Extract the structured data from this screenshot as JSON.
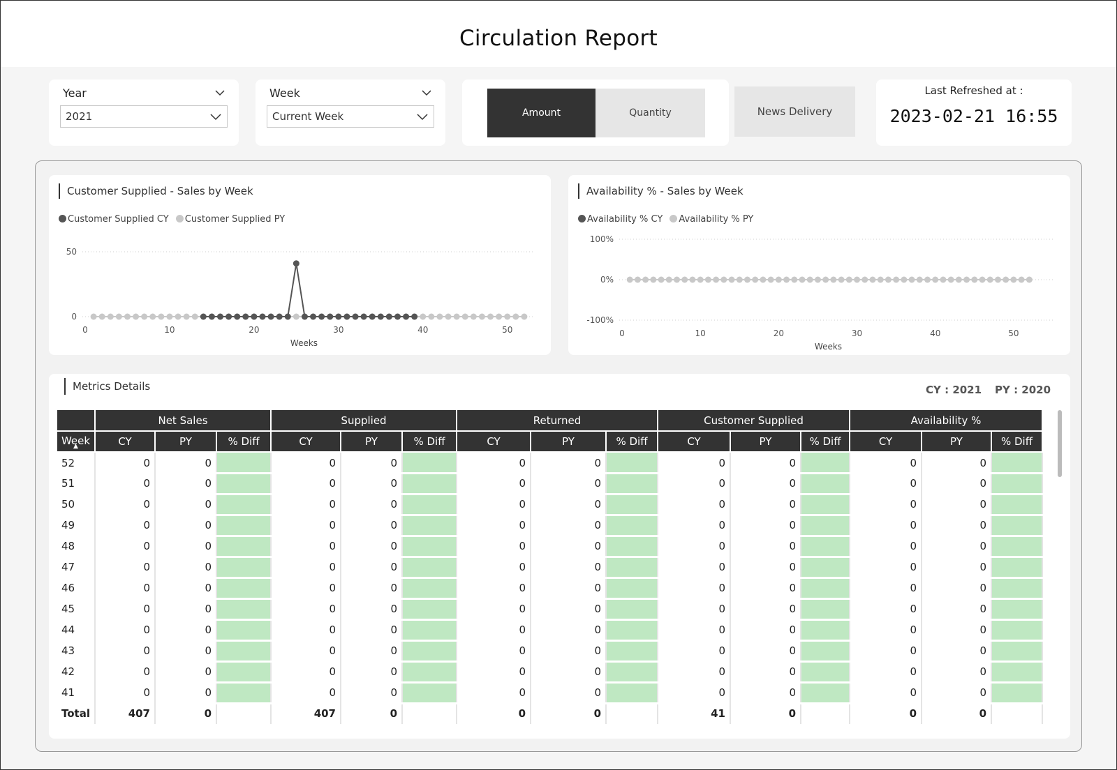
{
  "title": "Circulation Report",
  "filters": {
    "year": {
      "label": "Year",
      "value": "2021"
    },
    "week": {
      "label": "Week",
      "value": "Current Week"
    }
  },
  "toggle": {
    "amount": "Amount",
    "quantity": "Quantity",
    "active": "Amount"
  },
  "news_delivery": "News Delivery",
  "refresh": {
    "label": "Last Refreshed at :",
    "time": "2023-02-21 16:55"
  },
  "chart1": {
    "title": "Customer Supplied - Sales by Week",
    "legend": [
      "Customer Supplied CY",
      "Customer Supplied PY"
    ]
  },
  "chart2": {
    "title": "Availability % - Sales by Week",
    "legend": [
      "Availability % CY",
      "Availability % PY"
    ]
  },
  "chart_data": [
    {
      "type": "line",
      "title": "Customer Supplied - Sales by Week",
      "xlabel": "Weeks",
      "ylabel": "",
      "xlim": [
        0,
        53
      ],
      "ylim": [
        0,
        50
      ],
      "xticks": [
        "0",
        "10",
        "20",
        "30",
        "40",
        "50"
      ],
      "yticks": [
        "0",
        "50"
      ],
      "legend_position": "top-left",
      "grid": true,
      "series": [
        {
          "name": "Customer Supplied CY",
          "color": "#555555",
          "x": [
            14,
            15,
            16,
            17,
            18,
            19,
            20,
            21,
            22,
            23,
            24,
            25,
            26,
            27,
            28,
            29,
            30,
            31,
            32,
            33,
            34,
            35,
            36,
            37,
            38,
            39
          ],
          "y": [
            0,
            0,
            0,
            0,
            0,
            0,
            0,
            0,
            0,
            0,
            0,
            41,
            0,
            0,
            0,
            0,
            0,
            0,
            0,
            0,
            0,
            0,
            0,
            0,
            0,
            0
          ]
        },
        {
          "name": "Customer Supplied PY",
          "color": "#c8c8c8",
          "x": [
            1,
            2,
            3,
            4,
            5,
            6,
            7,
            8,
            9,
            10,
            11,
            12,
            13,
            14,
            15,
            16,
            17,
            18,
            19,
            20,
            21,
            22,
            23,
            24,
            25,
            26,
            27,
            28,
            29,
            30,
            31,
            32,
            33,
            34,
            35,
            36,
            37,
            38,
            39,
            40,
            41,
            42,
            43,
            44,
            45,
            46,
            47,
            48,
            49,
            50,
            51,
            52
          ],
          "y": [
            0,
            0,
            0,
            0,
            0,
            0,
            0,
            0,
            0,
            0,
            0,
            0,
            0,
            0,
            0,
            0,
            0,
            0,
            0,
            0,
            0,
            0,
            0,
            0,
            0,
            0,
            0,
            0,
            0,
            0,
            0,
            0,
            0,
            0,
            0,
            0,
            0,
            0,
            0,
            0,
            0,
            0,
            0,
            0,
            0,
            0,
            0,
            0,
            0,
            0,
            0,
            0
          ]
        }
      ]
    },
    {
      "type": "line",
      "title": "Availability % - Sales by Week",
      "xlabel": "Weeks",
      "ylabel": "",
      "xlim": [
        0,
        55
      ],
      "ylim": [
        -100,
        100
      ],
      "xticks": [
        "0",
        "10",
        "20",
        "30",
        "40",
        "50"
      ],
      "yticks": [
        "100%",
        "0%",
        "-100%"
      ],
      "legend_position": "top-left",
      "grid": true,
      "series": [
        {
          "name": "Availability % CY",
          "color": "#555555",
          "x": [],
          "y": []
        },
        {
          "name": "Availability % PY",
          "color": "#c8c8c8",
          "x": [
            1,
            2,
            3,
            4,
            5,
            6,
            7,
            8,
            9,
            10,
            11,
            12,
            13,
            14,
            15,
            16,
            17,
            18,
            19,
            20,
            21,
            22,
            23,
            24,
            25,
            26,
            27,
            28,
            29,
            30,
            31,
            32,
            33,
            34,
            35,
            36,
            37,
            38,
            39,
            40,
            41,
            42,
            43,
            44,
            45,
            46,
            47,
            48,
            49,
            50,
            51,
            52
          ],
          "y": [
            0,
            0,
            0,
            0,
            0,
            0,
            0,
            0,
            0,
            0,
            0,
            0,
            0,
            0,
            0,
            0,
            0,
            0,
            0,
            0,
            0,
            0,
            0,
            0,
            0,
            0,
            0,
            0,
            0,
            0,
            0,
            0,
            0,
            0,
            0,
            0,
            0,
            0,
            0,
            0,
            0,
            0,
            0,
            0,
            0,
            0,
            0,
            0,
            0,
            0,
            0,
            0
          ]
        }
      ]
    }
  ],
  "metrics": {
    "title": "Metrics Details",
    "cy_label": "CY : 2021",
    "py_label": "PY : 2020",
    "groups": [
      "Net Sales",
      "Supplied",
      "Returned",
      "Customer Supplied",
      "Availability %"
    ],
    "sub_headers": [
      "CY",
      "PY",
      "% Diff"
    ],
    "week_header": "Week",
    "rows": [
      {
        "week": "52",
        "values": [
          "0",
          "0",
          "0",
          "0",
          "0",
          "0",
          "0",
          "0",
          "0",
          "0"
        ]
      },
      {
        "week": "51",
        "values": [
          "0",
          "0",
          "0",
          "0",
          "0",
          "0",
          "0",
          "0",
          "0",
          "0"
        ]
      },
      {
        "week": "50",
        "values": [
          "0",
          "0",
          "0",
          "0",
          "0",
          "0",
          "0",
          "0",
          "0",
          "0"
        ]
      },
      {
        "week": "49",
        "values": [
          "0",
          "0",
          "0",
          "0",
          "0",
          "0",
          "0",
          "0",
          "0",
          "0"
        ]
      },
      {
        "week": "48",
        "values": [
          "0",
          "0",
          "0",
          "0",
          "0",
          "0",
          "0",
          "0",
          "0",
          "0"
        ]
      },
      {
        "week": "47",
        "values": [
          "0",
          "0",
          "0",
          "0",
          "0",
          "0",
          "0",
          "0",
          "0",
          "0"
        ]
      },
      {
        "week": "46",
        "values": [
          "0",
          "0",
          "0",
          "0",
          "0",
          "0",
          "0",
          "0",
          "0",
          "0"
        ]
      },
      {
        "week": "45",
        "values": [
          "0",
          "0",
          "0",
          "0",
          "0",
          "0",
          "0",
          "0",
          "0",
          "0"
        ]
      },
      {
        "week": "44",
        "values": [
          "0",
          "0",
          "0",
          "0",
          "0",
          "0",
          "0",
          "0",
          "0",
          "0"
        ]
      },
      {
        "week": "43",
        "values": [
          "0",
          "0",
          "0",
          "0",
          "0",
          "0",
          "0",
          "0",
          "0",
          "0"
        ]
      },
      {
        "week": "42",
        "values": [
          "0",
          "0",
          "0",
          "0",
          "0",
          "0",
          "0",
          "0",
          "0",
          "0"
        ]
      },
      {
        "week": "41",
        "values": [
          "0",
          "0",
          "0",
          "0",
          "0",
          "0",
          "0",
          "0",
          "0",
          "0"
        ]
      }
    ],
    "total": {
      "week": "Total",
      "values": [
        "407",
        "0",
        "407",
        "0",
        "0",
        "0",
        "41",
        "0",
        "0",
        "0"
      ]
    }
  },
  "colors": {
    "dark": "#333333",
    "diff_fill": "#bfe8c2",
    "cy_dot": "#555555",
    "py_dot": "#c8c8c8"
  }
}
